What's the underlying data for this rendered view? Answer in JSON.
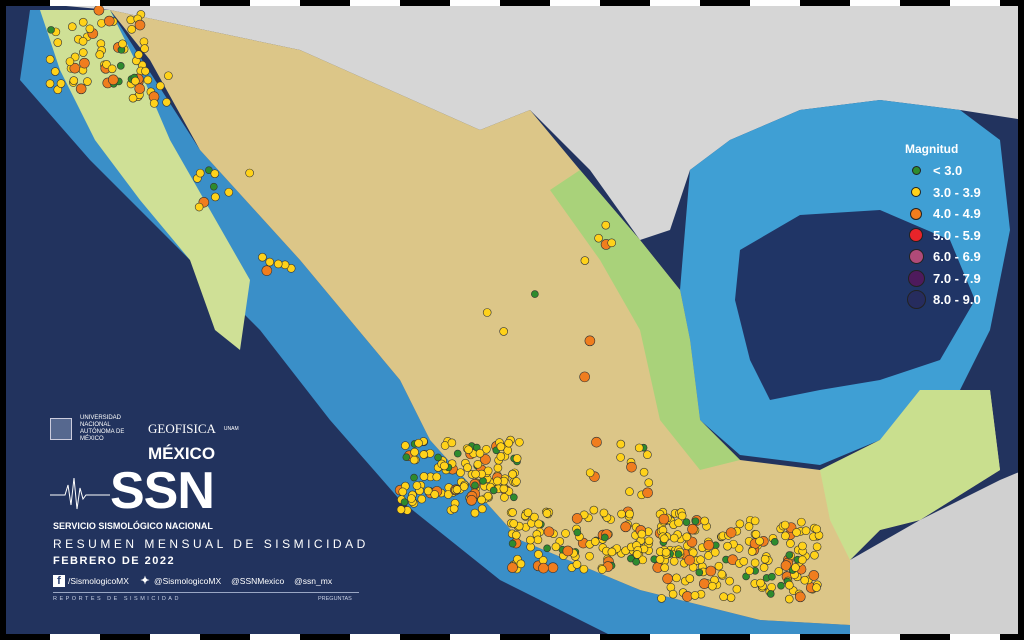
{
  "legend": {
    "title": "Magnitud",
    "items": [
      {
        "label": "< 3.0",
        "color": "#2e8b2e",
        "size": 7
      },
      {
        "label": "3.0 - 3.9",
        "color": "#ffd21a",
        "size": 8
      },
      {
        "label": "4.0 - 4.9",
        "color": "#f07d1e",
        "size": 10
      },
      {
        "label": "5.0 - 5.9",
        "color": "#e8242a",
        "size": 12
      },
      {
        "label": "6.0 - 6.9",
        "color": "#b04a78",
        "size": 13
      },
      {
        "label": "7.0 - 7.9",
        "color": "#4e1a5c",
        "size": 15
      },
      {
        "label": "8.0 - 9.0",
        "color": "#262c5e",
        "size": 17
      }
    ]
  },
  "branding": {
    "unam": "UNIVERSIDAD NACIONAL AUTÓNOMA DE MÉXICO",
    "geofisica": "GEOFISICA",
    "geofisica_sub": "UNAM",
    "mexico": "MÉXICO",
    "ssn": "SSN",
    "service": "SERVICIO SISMOLÓGICO NACIONAL"
  },
  "report": {
    "title": "RESUMEN MENSUAL DE SISMICIDAD",
    "period": "FEBRERO DE 2022"
  },
  "social": {
    "facebook": "/SismologicoMX",
    "twitter": "@SismologicoMX",
    "instagram": "@SSNMexico",
    "other": "@ssn_mx",
    "reports": "REPORTES DE SISMICIDAD",
    "questions": "PREGUNTAS"
  },
  "colors": {
    "deep_ocean": "#22335e",
    "shelf": "#3aa0d6",
    "land": "#e0c98a",
    "lowland": "#c8e08c",
    "foreign_land": "#d4d4d4"
  }
}
